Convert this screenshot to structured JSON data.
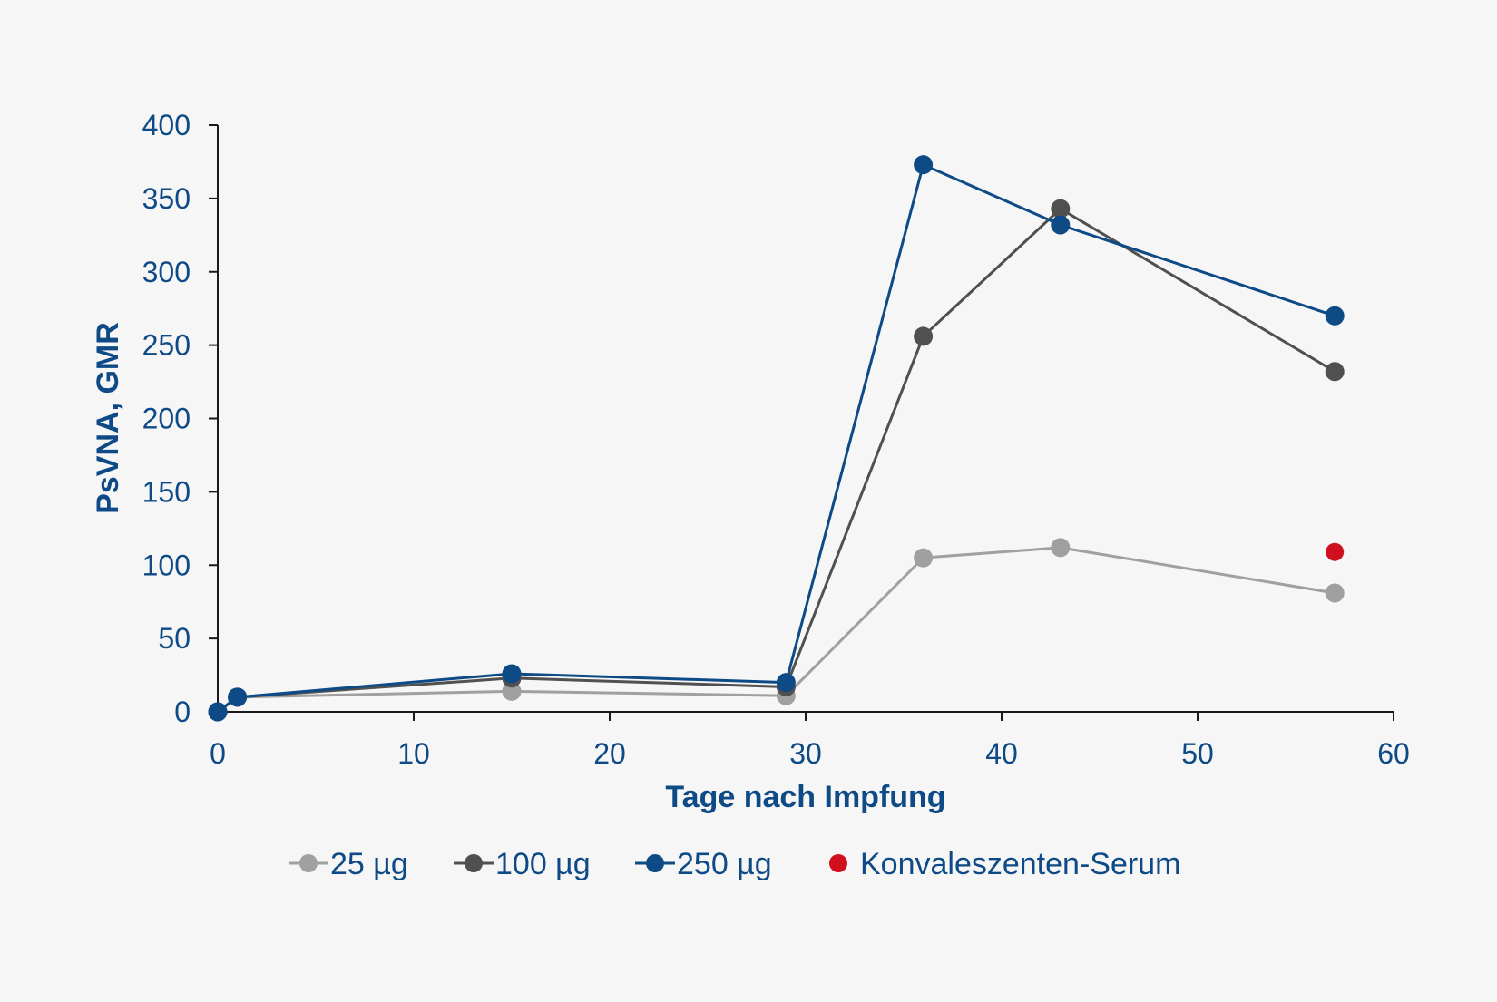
{
  "chart_data": {
    "type": "line",
    "xlabel": "Tage nach Impfung",
    "ylabel": "PsVNA, GMR",
    "xlim": [
      0,
      60
    ],
    "ylim": [
      0,
      400
    ],
    "xticks": [
      "0",
      "10",
      "20",
      "30",
      "40",
      "50",
      "60"
    ],
    "yticks": [
      "0",
      "50",
      "100",
      "150",
      "200",
      "250",
      "300",
      "350",
      "400"
    ],
    "grid": false,
    "legend_position": "bottom",
    "series": [
      {
        "name": "25 µg",
        "color": "#a0a0a0",
        "marker": "circle",
        "points": [
          [
            0,
            0
          ],
          [
            1,
            10
          ],
          [
            15,
            14
          ],
          [
            29,
            11
          ],
          [
            36,
            105
          ],
          [
            43,
            112
          ],
          [
            57,
            81
          ]
        ]
      },
      {
        "name": "100 µg",
        "color": "#505050",
        "marker": "circle",
        "points": [
          [
            0,
            0
          ],
          [
            1,
            10
          ],
          [
            15,
            23
          ],
          [
            29,
            17
          ],
          [
            36,
            256
          ],
          [
            43,
            343
          ],
          [
            57,
            232
          ]
        ]
      },
      {
        "name": "250 µg",
        "color": "#0d4a86",
        "marker": "circle",
        "points": [
          [
            0,
            0
          ],
          [
            1,
            10
          ],
          [
            15,
            26
          ],
          [
            29,
            20
          ],
          [
            36,
            373
          ],
          [
            43,
            332
          ],
          [
            57,
            270
          ]
        ]
      },
      {
        "name": "Konvaleszenten-Serum",
        "color": "#d0101e",
        "marker": "circle",
        "line": false,
        "points": [
          [
            57,
            109
          ]
        ]
      }
    ]
  }
}
